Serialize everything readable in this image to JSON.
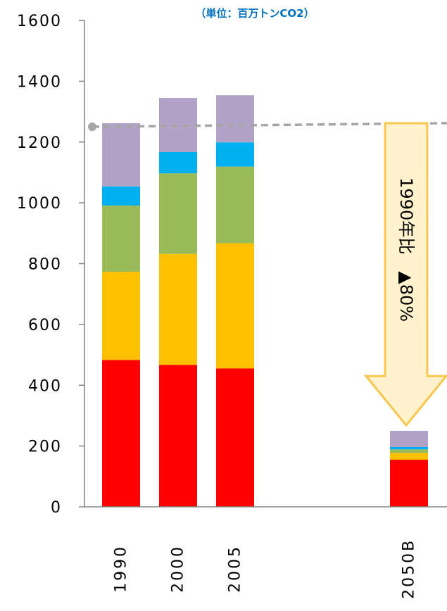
{
  "chart_data": {
    "type": "bar",
    "stacked": true,
    "unit_label": "（単位：百万トンCO2）",
    "categories": [
      "1990",
      "2000",
      "2005",
      "2050B"
    ],
    "series": [
      {
        "values": [
          483,
          467,
          455,
          155
        ],
        "color": "#ff0000"
      },
      {
        "values": [
          290,
          365,
          412,
          22
        ],
        "color": "#ffc000"
      },
      {
        "values": [
          218,
          265,
          252,
          12
        ],
        "color": "#9bbb59"
      },
      {
        "values": [
          63,
          70,
          80,
          8
        ],
        "color": "#00b0f0"
      },
      {
        "values": [
          208,
          178,
          155,
          53
        ],
        "color": "#b2a2c7"
      }
    ],
    "ylim": [
      0,
      1600
    ],
    "yticks": [
      0,
      200,
      400,
      600,
      800,
      1000,
      1200,
      1400,
      1600
    ],
    "reference_line": {
      "value": 1250,
      "end_value": 1262,
      "color": "#a6a6a6"
    },
    "reduction_arrow": {
      "label": "1990年比　▲80%",
      "from_value": 1262,
      "to_value": 268,
      "fill": "#fff2cc",
      "stroke": "#f9c74f"
    },
    "colors": {
      "unit_text": "#0070c0",
      "axis": "#808080"
    }
  }
}
